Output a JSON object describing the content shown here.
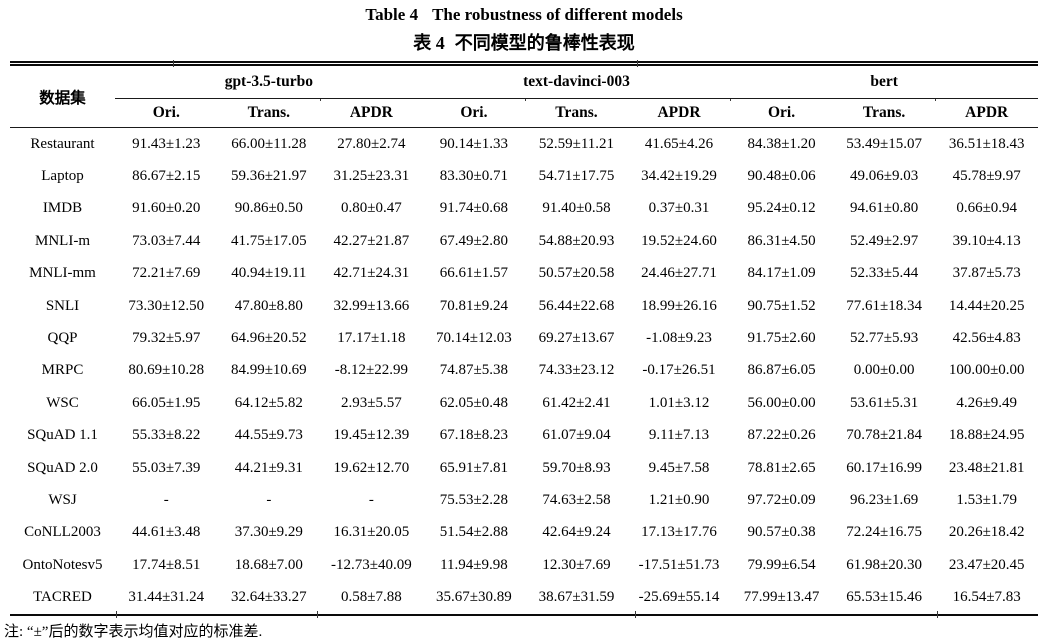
{
  "page": {
    "title_en": {
      "label": "Table 4",
      "text": "The robustness of different models"
    },
    "title_zh": {
      "label": "表 4",
      "text": "不同模型的鲁棒性表现"
    },
    "footnote": "注: “±”后的数字表示均值对应的标准差."
  },
  "table": {
    "dataset_header": "数据集",
    "groups": [
      {
        "name": "gpt-3.5-turbo",
        "subcols": [
          "Ori.",
          "Trans.",
          "APDR"
        ]
      },
      {
        "name": "text-davinci-003",
        "subcols": [
          "Ori.",
          "Trans.",
          "APDR"
        ]
      },
      {
        "name": "bert",
        "subcols": [
          "Ori.",
          "Trans.",
          "APDR"
        ]
      }
    ],
    "rows": [
      {
        "dataset": "Restaurant",
        "values": [
          "91.43±1.23",
          "66.00±11.28",
          "27.80±2.74",
          "90.14±1.33",
          "52.59±11.21",
          "41.65±4.26",
          "84.38±1.20",
          "53.49±15.07",
          "36.51±18.43"
        ]
      },
      {
        "dataset": "Laptop",
        "values": [
          "86.67±2.15",
          "59.36±21.97",
          "31.25±23.31",
          "83.30±0.71",
          "54.71±17.75",
          "34.42±19.29",
          "90.48±0.06",
          "49.06±9.03",
          "45.78±9.97"
        ]
      },
      {
        "dataset": "IMDB",
        "values": [
          "91.60±0.20",
          "90.86±0.50",
          "0.80±0.47",
          "91.74±0.68",
          "91.40±0.58",
          "0.37±0.31",
          "95.24±0.12",
          "94.61±0.80",
          "0.66±0.94"
        ]
      },
      {
        "dataset": "MNLI-m",
        "values": [
          "73.03±7.44",
          "41.75±17.05",
          "42.27±21.87",
          "67.49±2.80",
          "54.88±20.93",
          "19.52±24.60",
          "86.31±4.50",
          "52.49±2.97",
          "39.10±4.13"
        ]
      },
      {
        "dataset": "MNLI-mm",
        "values": [
          "72.21±7.69",
          "40.94±19.11",
          "42.71±24.31",
          "66.61±1.57",
          "50.57±20.58",
          "24.46±27.71",
          "84.17±1.09",
          "52.33±5.44",
          "37.87±5.73"
        ]
      },
      {
        "dataset": "SNLI",
        "values": [
          "73.30±12.50",
          "47.80±8.80",
          "32.99±13.66",
          "70.81±9.24",
          "56.44±22.68",
          "18.99±26.16",
          "90.75±1.52",
          "77.61±18.34",
          "14.44±20.25"
        ]
      },
      {
        "dataset": "QQP",
        "values": [
          "79.32±5.97",
          "64.96±20.52",
          "17.17±1.18",
          "70.14±12.03",
          "69.27±13.67",
          "-1.08±9.23",
          "91.75±2.60",
          "52.77±5.93",
          "42.56±4.83"
        ]
      },
      {
        "dataset": "MRPC",
        "values": [
          "80.69±10.28",
          "84.99±10.69",
          "-8.12±22.99",
          "74.87±5.38",
          "74.33±23.12",
          "-0.17±26.51",
          "86.87±6.05",
          "0.00±0.00",
          "100.00±0.00"
        ]
      },
      {
        "dataset": "WSC",
        "values": [
          "66.05±1.95",
          "64.12±5.82",
          "2.93±5.57",
          "62.05±0.48",
          "61.42±2.41",
          "1.01±3.12",
          "56.00±0.00",
          "53.61±5.31",
          "4.26±9.49"
        ]
      },
      {
        "dataset": "SQuAD 1.1",
        "values": [
          "55.33±8.22",
          "44.55±9.73",
          "19.45±12.39",
          "67.18±8.23",
          "61.07±9.04",
          "9.11±7.13",
          "87.22±0.26",
          "70.78±21.84",
          "18.88±24.95"
        ]
      },
      {
        "dataset": "SQuAD 2.0",
        "values": [
          "55.03±7.39",
          "44.21±9.31",
          "19.62±12.70",
          "65.91±7.81",
          "59.70±8.93",
          "9.45±7.58",
          "78.81±2.65",
          "60.17±16.99",
          "23.48±21.81"
        ]
      },
      {
        "dataset": "WSJ",
        "values": [
          "-",
          "-",
          "-",
          "75.53±2.28",
          "74.63±2.58",
          "1.21±0.90",
          "97.72±0.09",
          "96.23±1.69",
          "1.53±1.79"
        ]
      },
      {
        "dataset": "CoNLL2003",
        "values": [
          "44.61±3.48",
          "37.30±9.29",
          "16.31±20.05",
          "51.54±2.88",
          "42.64±9.24",
          "17.13±17.76",
          "90.57±0.38",
          "72.24±16.75",
          "20.26±18.42"
        ]
      },
      {
        "dataset": "OntoNotesv5",
        "values": [
          "17.74±8.51",
          "18.68±7.00",
          "-12.73±40.09",
          "11.94±9.98",
          "12.30±7.69",
          "-17.51±51.73",
          "79.99±6.54",
          "61.98±20.30",
          "23.47±20.45"
        ]
      },
      {
        "dataset": "TACRED",
        "values": [
          "31.44±31.24",
          "32.64±33.27",
          "0.58±7.88",
          "35.67±30.89",
          "38.67±31.59",
          "-25.69±55.14",
          "77.99±13.47",
          "65.53±15.46",
          "16.54±7.83"
        ]
      }
    ]
  }
}
